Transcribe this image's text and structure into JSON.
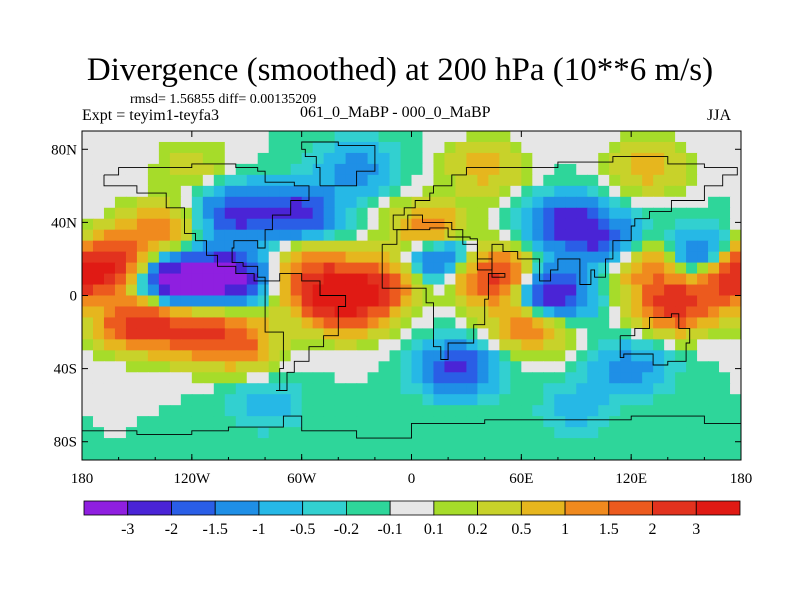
{
  "chart_data": {
    "type": "heatmap",
    "title": "Divergence (smoothed) at 200 hPa (10**6 m/s)",
    "stats_line": "rmsd= 1.56855  diff= 0.00135209",
    "left_label": "Expt = teyim1-teyfa3",
    "center_label": "061_0_MaBP - 000_0_MaBP",
    "right_label": "JJA",
    "x_ticks": [
      "180",
      "120W",
      "60W",
      "0",
      "60E",
      "120E",
      "180"
    ],
    "y_ticks": [
      "80N",
      "40N",
      "0",
      "40S",
      "80S"
    ],
    "x_range": [
      -180,
      180
    ],
    "y_range": [
      -90,
      90
    ],
    "colorbar": {
      "labels": [
        "-3",
        "-2",
        "-1.5",
        "-1",
        "-0.5",
        "-0.2",
        "-0.1",
        "0.1",
        "0.2",
        "0.5",
        "1",
        "1.5",
        "2",
        "3"
      ],
      "colors": [
        "#8f1fe0",
        "#4a24d6",
        "#2a5ee6",
        "#1f8fe6",
        "#26b8e6",
        "#32d0d0",
        "#2ed69a",
        "#e6e6e6",
        "#a6dc2a",
        "#c8d22a",
        "#e6b61e",
        "#f08a1e",
        "#ec5a1e",
        "#e2321e",
        "#e01a14"
      ]
    },
    "field_centers": [
      {
        "lon": -165,
        "lat": 18,
        "value": 3
      },
      {
        "lon": -140,
        "lat": 35,
        "value": 1.5
      },
      {
        "lon": -150,
        "lat": -15,
        "value": 3
      },
      {
        "lon": -120,
        "lat": -20,
        "value": 2
      },
      {
        "lon": -95,
        "lat": 45,
        "value": -2
      },
      {
        "lon": -130,
        "lat": 8,
        "value": -3
      },
      {
        "lon": -100,
        "lat": 10,
        "value": -3
      },
      {
        "lon": -95,
        "lat": -25,
        "value": 2
      },
      {
        "lon": -60,
        "lat": 45,
        "value": -2
      },
      {
        "lon": -55,
        "lat": 15,
        "value": 1.5
      },
      {
        "lon": -45,
        "lat": 0,
        "value": 3
      },
      {
        "lon": -35,
        "lat": -10,
        "value": 1.5
      },
      {
        "lon": -20,
        "lat": 5,
        "value": 3
      },
      {
        "lon": 15,
        "lat": 22,
        "value": -2
      },
      {
        "lon": 10,
        "lat": 35,
        "value": 2
      },
      {
        "lon": 25,
        "lat": -40,
        "value": -2
      },
      {
        "lon": 45,
        "lat": 10,
        "value": 3
      },
      {
        "lon": 75,
        "lat": 0,
        "value": -3
      },
      {
        "lon": 85,
        "lat": 40,
        "value": -2
      },
      {
        "lon": 65,
        "lat": -15,
        "value": 2
      },
      {
        "lon": 105,
        "lat": 30,
        "value": -1.5
      },
      {
        "lon": 130,
        "lat": 15,
        "value": 1.5
      },
      {
        "lon": 145,
        "lat": -5,
        "value": 3
      },
      {
        "lon": 160,
        "lat": 20,
        "value": -2
      },
      {
        "lon": 175,
        "lat": 10,
        "value": 3
      },
      {
        "lon": 120,
        "lat": -40,
        "value": -1
      },
      {
        "lon": -30,
        "lat": 70,
        "value": -1
      },
      {
        "lon": 40,
        "lat": 70,
        "value": 1
      },
      {
        "lon": 130,
        "lat": 70,
        "value": 1
      },
      {
        "lon": -120,
        "lat": 70,
        "value": 0.5
      },
      {
        "lon": -80,
        "lat": -60,
        "value": -0.5
      },
      {
        "lon": 90,
        "lat": -62,
        "value": -0.5
      }
    ]
  }
}
